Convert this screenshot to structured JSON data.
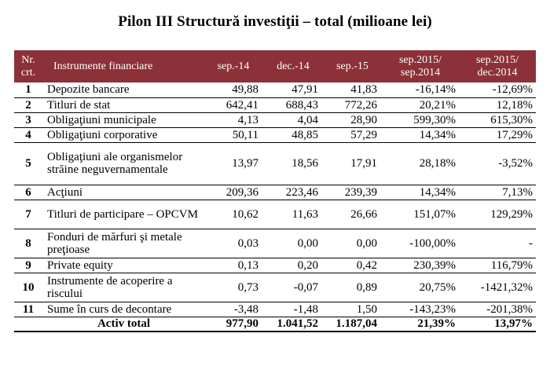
{
  "title": "Pilon III  Structură investiţii  – total (milioane lei)",
  "header": {
    "nr": "Nr. crt.",
    "instrument": "Instrumente financiare",
    "c1": "sep.-14",
    "c2": "dec.-14",
    "c3": "sep.-15",
    "c4": "sep.2015/ sep.2014",
    "c5": "sep.2015/ dec.2014"
  },
  "rows": [
    {
      "nr": "1",
      "name": "Depozite bancare",
      "v1": "49,88",
      "v2": "47,91",
      "v3": "41,83",
      "p1": "-16,14%",
      "p2": "-12,69%"
    },
    {
      "nr": "2",
      "name": "Titluri de stat",
      "v1": "642,41",
      "v2": "688,43",
      "v3": "772,26",
      "p1": "20,21%",
      "p2": "12,18%"
    },
    {
      "nr": "3",
      "name": "Obligaţiuni municipale",
      "v1": "4,13",
      "v2": "4,04",
      "v3": "28,90",
      "p1": "599,30%",
      "p2": "615,30%"
    },
    {
      "nr": "4",
      "name": "Obligaţiuni corporative",
      "v1": "50,11",
      "v2": "48,85",
      "v3": "57,29",
      "p1": "14,34%",
      "p2": "17,29%"
    },
    {
      "nr": "5",
      "name": "Obligaţiuni ale organismelor străine neguvernamentale",
      "v1": "13,97",
      "v2": "18,56",
      "v3": "17,91",
      "p1": "28,18%",
      "p2": "-3,52%"
    },
    {
      "nr": "6",
      "name": "Acţiuni",
      "v1": "209,36",
      "v2": "223,46",
      "v3": "239,39",
      "p1": "14,34%",
      "p2": "7,13%"
    },
    {
      "nr": "7",
      "name": "Titluri de participare – OPCVM",
      "v1": "10,62",
      "v2": "11,63",
      "v3": "26,66",
      "p1": "151,07%",
      "p2": "129,29%"
    },
    {
      "nr": "8",
      "name": "Fonduri de mărfuri şi metale preţioase",
      "v1": "0,03",
      "v2": "0,00",
      "v3": "0,00",
      "p1": "-100,00%",
      "p2": "-"
    },
    {
      "nr": "9",
      "name": "Private equity",
      "v1": "0,13",
      "v2": "0,20",
      "v3": "0,42",
      "p1": "230,39%",
      "p2": "116,79%"
    },
    {
      "nr": "10",
      "name": "Instrumente de acoperire a riscului",
      "v1": "0,73",
      "v2": "-0,07",
      "v3": "0,89",
      "p1": "20,75%",
      "p2": "-1421,32%"
    },
    {
      "nr": "11",
      "name": "Sume în curs de decontare",
      "v1": "-3,48",
      "v2": "-1,48",
      "v3": "1,50",
      "p1": "-143,23%",
      "p2": "-201,38%"
    }
  ],
  "total": {
    "name": "Activ total",
    "v1": "977,90",
    "v2": "1.041,52",
    "v3": "1.187,04",
    "p1": "21,39%",
    "p2": "13,97%"
  },
  "colors": {
    "header_bg": "#8c3137",
    "header_text": "#ffffff"
  }
}
